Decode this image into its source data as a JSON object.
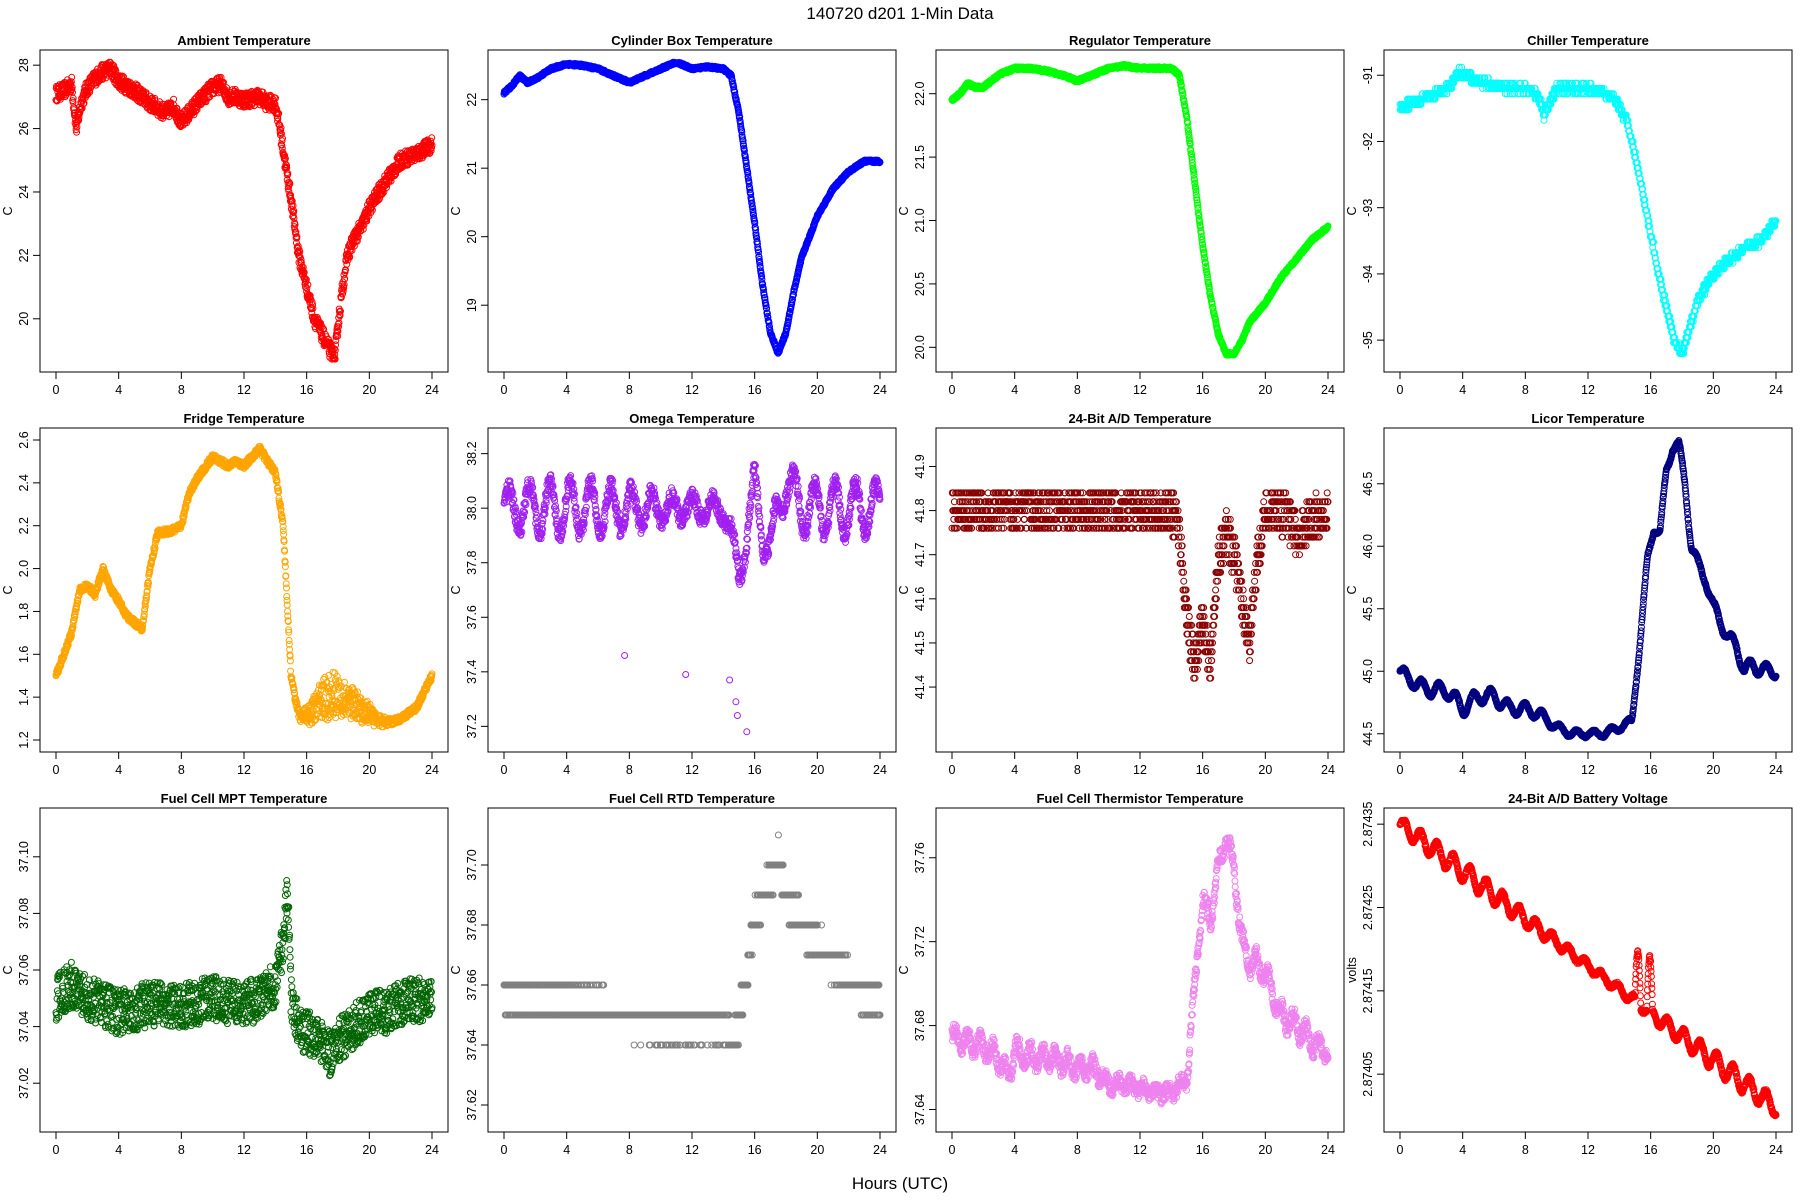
{
  "header": {
    "title": "140720    d201    1-Min Data"
  },
  "xlabel": "Hours (UTC)",
  "chart_data": [
    {
      "type": "scatter",
      "title": "Ambient Temperature",
      "ylabel": "C",
      "color": "#ff0000",
      "xlim": [
        0,
        24
      ],
      "ylim": [
        18.7,
        28.1
      ],
      "xticks": [
        0,
        4,
        8,
        12,
        16,
        20,
        24
      ],
      "yticks": [
        20,
        22,
        24,
        26,
        28
      ],
      "ytick_labels": [
        "20",
        "22",
        "24",
        "26",
        "28"
      ],
      "series": {
        "x": [
          0,
          0.5,
          1,
          1.3,
          1.6,
          2,
          2.5,
          3,
          3.5,
          4,
          5,
          6,
          7,
          7.5,
          8,
          8.5,
          9,
          10,
          10.5,
          11,
          11.5,
          12,
          13,
          13.5,
          14,
          14.3,
          14.6,
          15,
          15.5,
          16,
          16.5,
          17,
          17.5,
          17.8,
          18,
          18.3,
          18.6,
          19,
          19.5,
          20,
          21,
          22,
          23,
          24
        ],
        "y": [
          27.1,
          27.2,
          27.4,
          26.0,
          26.8,
          27.3,
          27.6,
          27.8,
          27.9,
          27.5,
          27.2,
          26.8,
          26.5,
          26.7,
          26.2,
          26.5,
          26.8,
          27.3,
          27.4,
          27.0,
          27.0,
          26.9,
          27.0,
          26.8,
          26.8,
          26.0,
          25.0,
          23.8,
          22.0,
          21.0,
          20.0,
          19.5,
          19.0,
          18.8,
          19.8,
          21.0,
          22.0,
          22.5,
          22.9,
          23.5,
          24.3,
          25.0,
          25.2,
          25.5
        ],
        "noise": 0.25
      }
    },
    {
      "type": "scatter",
      "title": "Cylinder Box Temperature",
      "ylabel": "C",
      "color": "#0000ff",
      "xlim": [
        0,
        24
      ],
      "ylim": [
        18.2,
        22.55
      ],
      "xticks": [
        0,
        4,
        8,
        12,
        16,
        20,
        24
      ],
      "yticks": [
        19,
        20,
        21,
        22
      ],
      "ytick_labels": [
        "19",
        "20",
        "21",
        "22"
      ],
      "series": {
        "x": [
          0,
          0.5,
          1,
          1.5,
          2,
          3,
          4,
          5,
          6,
          7,
          8,
          9,
          10,
          11,
          12,
          13,
          14,
          14.5,
          15,
          15.5,
          16,
          16.5,
          17,
          17.5,
          18,
          18.5,
          19,
          20,
          21,
          22,
          23,
          24
        ],
        "y": [
          22.1,
          22.2,
          22.35,
          22.25,
          22.3,
          22.45,
          22.52,
          22.5,
          22.45,
          22.35,
          22.25,
          22.35,
          22.45,
          22.55,
          22.45,
          22.48,
          22.45,
          22.35,
          21.8,
          21.0,
          20.2,
          19.3,
          18.6,
          18.3,
          18.6,
          19.2,
          19.7,
          20.3,
          20.7,
          20.95,
          21.1,
          21.1
        ],
        "noise": 0.02
      }
    },
    {
      "type": "scatter",
      "title": "Regulator Temperature",
      "ylabel": "C",
      "color": "#00ff00",
      "xlim": [
        0,
        24
      ],
      "ylim": [
        19.9,
        22.25
      ],
      "xticks": [
        0,
        4,
        8,
        12,
        16,
        20,
        24
      ],
      "yticks": [
        20.0,
        20.5,
        21.0,
        21.5,
        22.0
      ],
      "ytick_labels": [
        "20.0",
        "20.5",
        "21.0",
        "21.5",
        "22.0"
      ],
      "series": {
        "x": [
          0,
          0.5,
          1,
          1.5,
          2,
          3,
          4,
          5,
          6,
          7,
          8,
          9,
          10,
          11,
          12,
          13,
          14,
          14.5,
          15,
          15.5,
          16,
          16.5,
          17,
          17.5,
          18,
          18.5,
          19,
          20,
          21,
          22,
          23,
          24
        ],
        "y": [
          21.95,
          22.0,
          22.08,
          22.05,
          22.05,
          22.15,
          22.2,
          22.2,
          22.18,
          22.15,
          22.1,
          22.15,
          22.2,
          22.22,
          22.2,
          22.2,
          22.2,
          22.15,
          21.8,
          21.3,
          20.8,
          20.4,
          20.1,
          19.95,
          19.95,
          20.05,
          20.2,
          20.35,
          20.55,
          20.7,
          20.85,
          20.95
        ],
        "noise": 0.012
      }
    },
    {
      "type": "scatter",
      "title": "Chiller Temperature",
      "ylabel": "C",
      "color": "#00ffff",
      "xlim": [
        0,
        24
      ],
      "ylim": [
        -95.3,
        -90.8
      ],
      "xticks": [
        0,
        4,
        8,
        12,
        16,
        20,
        24
      ],
      "yticks": [
        -95,
        -94,
        -93,
        -92,
        -91
      ],
      "ytick_labels": [
        "-95",
        "-94",
        "-93",
        "-92",
        "-91"
      ],
      "series": {
        "x": [
          0,
          1,
          2,
          3,
          3.8,
          5,
          6,
          7,
          8,
          8.8,
          9.2,
          9.6,
          10,
          11,
          12,
          13,
          13.8,
          14.5,
          15,
          15.5,
          16,
          16.5,
          17,
          17.5,
          18,
          18.5,
          19,
          20,
          21,
          22,
          23,
          24
        ],
        "y": [
          -91.5,
          -91.4,
          -91.3,
          -91.2,
          -90.95,
          -91.1,
          -91.15,
          -91.2,
          -91.2,
          -91.3,
          -91.6,
          -91.4,
          -91.2,
          -91.2,
          -91.2,
          -91.25,
          -91.4,
          -91.7,
          -92.2,
          -92.8,
          -93.4,
          -94.0,
          -94.5,
          -95.0,
          -95.2,
          -94.8,
          -94.4,
          -94.0,
          -93.8,
          -93.6,
          -93.5,
          -93.2
        ],
        "noise": 0.06,
        "quant": 0.08
      }
    },
    {
      "type": "scatter",
      "title": "Fridge Temperature",
      "ylabel": "C",
      "color": "#ffa500",
      "xlim": [
        0,
        24
      ],
      "ylim": [
        1.2,
        2.6
      ],
      "xticks": [
        0,
        4,
        8,
        12,
        16,
        20,
        24
      ],
      "yticks": [
        1.2,
        1.4,
        1.6,
        1.8,
        2.0,
        2.2,
        2.4,
        2.6
      ],
      "ytick_labels": [
        "1.2",
        "1.4",
        "1.6",
        "1.8",
        "2.0",
        "2.2",
        "2.4",
        "2.6"
      ],
      "series": {
        "x": [
          0,
          0.5,
          1,
          1.5,
          2,
          2.5,
          3,
          3.5,
          4,
          4.5,
          5,
          5.5,
          6,
          6.5,
          7,
          7.5,
          8,
          8.5,
          9,
          9.5,
          10,
          10.5,
          11,
          11.5,
          12,
          12.5,
          13,
          13.5,
          14,
          14.5,
          15,
          15.5,
          16,
          17,
          18,
          19,
          20,
          21,
          22,
          23,
          24
        ],
        "y": [
          1.5,
          1.6,
          1.7,
          1.9,
          1.92,
          1.88,
          2.0,
          1.9,
          1.85,
          1.78,
          1.75,
          1.72,
          2.0,
          2.17,
          2.17,
          2.18,
          2.2,
          2.35,
          2.42,
          2.47,
          2.52,
          2.5,
          2.48,
          2.5,
          2.48,
          2.52,
          2.56,
          2.5,
          2.45,
          2.2,
          1.5,
          1.3,
          1.28,
          1.3,
          1.32,
          1.3,
          1.28,
          1.27,
          1.3,
          1.35,
          1.5
        ],
        "noise": 0.015,
        "band": [
          15.2,
          21.5,
          0.22,
          17.5
        ]
      }
    },
    {
      "type": "scatter",
      "title": "Omega Temperature",
      "ylabel": "C",
      "color": "#a020f0",
      "xlim": [
        0,
        24
      ],
      "ylim": [
        37.15,
        38.25
      ],
      "xticks": [
        0,
        4,
        8,
        12,
        16,
        20,
        24
      ],
      "yticks": [
        37.2,
        37.4,
        37.6,
        37.8,
        38.0,
        38.2
      ],
      "ytick_labels": [
        "37.2",
        "37.4",
        "37.6",
        "37.8",
        "38.0",
        "38.2"
      ],
      "series": {
        "x": [
          0,
          1,
          2,
          3,
          4,
          5,
          6,
          7,
          8,
          9,
          10,
          11,
          12,
          13,
          14,
          14.5,
          15,
          15.5,
          16,
          16.5,
          17,
          17.5,
          18,
          19,
          20,
          21,
          22,
          23,
          24
        ],
        "y": [
          38.0,
          38.0,
          38.0,
          38.0,
          38.0,
          38.0,
          38.0,
          38.0,
          38.0,
          38.0,
          38.0,
          38.0,
          38.0,
          38.0,
          38.0,
          37.9,
          37.75,
          37.9,
          38.1,
          37.9,
          37.85,
          38.0,
          38.1,
          38.0,
          38.0,
          38.0,
          38.0,
          38.0,
          38.0
        ],
        "noise": 0.03,
        "wave": [
          0.1,
          1.3
        ]
      },
      "outliers": [
        {
          "x": 7.7,
          "y": 37.46
        },
        {
          "x": 11.6,
          "y": 37.39
        },
        {
          "x": 14.4,
          "y": 37.37
        },
        {
          "x": 14.8,
          "y": 37.29
        },
        {
          "x": 14.9,
          "y": 37.24
        },
        {
          "x": 15.5,
          "y": 37.18
        }
      ]
    },
    {
      "type": "scatter",
      "title": "24-Bit A/D Temperature",
      "ylabel": "C",
      "color": "#8b0000",
      "xlim": [
        0,
        24
      ],
      "ylim": [
        41.28,
        41.96
      ],
      "xticks": [
        0,
        4,
        8,
        12,
        16,
        20,
        24
      ],
      "yticks": [
        41.4,
        41.5,
        41.6,
        41.7,
        41.8,
        41.9
      ],
      "ytick_labels": [
        "41.4",
        "41.5",
        "41.6",
        "41.7",
        "41.8",
        "41.9"
      ],
      "series": {
        "x": [
          0,
          2,
          4,
          6,
          8,
          10,
          12,
          14,
          14.5,
          15,
          15.5,
          16,
          16.5,
          17,
          17.5,
          18,
          18.5,
          19,
          19.5,
          20,
          21,
          22,
          23,
          24
        ],
        "y": [
          41.8,
          41.8,
          41.8,
          41.8,
          41.8,
          41.8,
          41.8,
          41.8,
          41.75,
          41.55,
          41.45,
          41.55,
          41.45,
          41.7,
          41.75,
          41.7,
          41.6,
          41.5,
          41.7,
          41.8,
          41.8,
          41.75,
          41.78,
          41.8
        ],
        "noise": 0.05,
        "quant": 0.02
      }
    },
    {
      "type": "scatter",
      "title": "Licor Temperature",
      "ylabel": "C",
      "color": "#000080",
      "xlim": [
        0,
        24
      ],
      "ylim": [
        44.45,
        46.85
      ],
      "xticks": [
        0,
        4,
        8,
        12,
        16,
        20,
        24
      ],
      "yticks": [
        44.5,
        45.0,
        45.5,
        46.0,
        46.5
      ],
      "ytick_labels": [
        "44.5",
        "45.0",
        "45.5",
        "46.0",
        "46.5"
      ],
      "series": {
        "x": [
          0,
          1,
          2,
          3,
          4,
          5,
          6,
          7,
          8,
          9,
          10,
          11,
          12,
          13,
          14,
          14.8,
          15.3,
          15.8,
          16.2,
          16.6,
          17,
          17.4,
          17.8,
          18.2,
          18.6,
          19,
          19.5,
          20,
          20.5,
          21,
          21.5,
          22,
          22.5,
          23,
          23.5,
          24
        ],
        "y": [
          45.0,
          44.9,
          44.85,
          44.85,
          44.7,
          44.8,
          44.8,
          44.7,
          44.7,
          44.65,
          44.55,
          44.5,
          44.5,
          44.5,
          44.55,
          44.6,
          45.2,
          45.9,
          46.15,
          46.1,
          46.6,
          46.8,
          46.8,
          46.5,
          46.0,
          45.85,
          45.75,
          45.5,
          45.4,
          45.25,
          45.2,
          45.0,
          45.05,
          45.02,
          45.0,
          45.0
        ],
        "noise": 0.008,
        "wave": [
          0.06,
          1.1
        ]
      }
    },
    {
      "type": "scatter",
      "title": "Fuel Cell MPT Temperature",
      "ylabel": "C",
      "color": "#006400",
      "xlim": [
        0,
        24
      ],
      "ylim": [
        37.007,
        37.113
      ],
      "xticks": [
        0,
        4,
        8,
        12,
        16,
        20,
        24
      ],
      "yticks": [
        37.02,
        37.04,
        37.06,
        37.08,
        37.1
      ],
      "ytick_labels": [
        "37.02",
        "37.04",
        "37.06",
        "37.08",
        "37.10"
      ],
      "series": {
        "x": [
          0,
          1,
          2,
          4,
          6,
          8,
          10,
          12,
          13,
          14,
          14.5,
          14.8,
          15,
          15.5,
          16,
          17,
          17.5,
          18,
          19,
          20,
          21,
          22,
          23,
          24
        ],
        "y": [
          37.05,
          37.055,
          37.05,
          37.045,
          37.048,
          37.047,
          37.05,
          37.048,
          37.05,
          37.055,
          37.07,
          37.09,
          37.05,
          37.04,
          37.038,
          37.035,
          37.03,
          37.035,
          37.04,
          37.045,
          37.045,
          37.048,
          37.05,
          37.048
        ],
        "noise": 0.008
      }
    },
    {
      "type": "scatter",
      "title": "Fuel Cell RTD Temperature",
      "ylabel": "C",
      "color": "#808080",
      "xlim": [
        0,
        24
      ],
      "ylim": [
        37.615,
        37.715
      ],
      "xticks": [
        0,
        4,
        8,
        12,
        16,
        20,
        24
      ],
      "yticks": [
        37.62,
        37.64,
        37.66,
        37.68,
        37.7
      ],
      "ytick_labels": [
        "37.62",
        "37.64",
        "37.66",
        "37.68",
        "37.70"
      ],
      "series": {
        "x": [
          0,
          3,
          6,
          7,
          9,
          11,
          13,
          14,
          14.6,
          15,
          15.5,
          16,
          16.5,
          17,
          17.5,
          18,
          19,
          20,
          21,
          22,
          23,
          24
        ],
        "y": [
          37.656,
          37.655,
          37.653,
          37.65,
          37.648,
          37.647,
          37.648,
          37.648,
          37.638,
          37.648,
          37.665,
          37.682,
          37.688,
          37.695,
          37.702,
          37.69,
          37.68,
          37.673,
          37.668,
          37.662,
          37.658,
          37.655
        ],
        "noise": 0.004,
        "quant": 0.01
      }
    },
    {
      "type": "scatter",
      "title": "Fuel Cell Thermistor Temperature",
      "ylabel": "C",
      "color": "#ee82ee",
      "xlim": [
        0,
        24
      ],
      "ylim": [
        37.635,
        37.778
      ],
      "xticks": [
        0,
        4,
        8,
        12,
        16,
        20,
        24
      ],
      "yticks": [
        37.64,
        37.68,
        37.72,
        37.76
      ],
      "ytick_labels": [
        "37.64",
        "37.68",
        "37.72",
        "37.76"
      ],
      "series": {
        "x": [
          0,
          1,
          2,
          3,
          3.5,
          4,
          5,
          6,
          7,
          8,
          9,
          10,
          11,
          12,
          13,
          14,
          15,
          15.5,
          16,
          16.5,
          17,
          17.5,
          18,
          18.5,
          19,
          19.5,
          20,
          20.5,
          21,
          22,
          23,
          24
        ],
        "y": [
          37.675,
          37.672,
          37.67,
          37.665,
          37.655,
          37.668,
          37.665,
          37.665,
          37.663,
          37.66,
          37.66,
          37.652,
          37.652,
          37.65,
          37.648,
          37.648,
          37.655,
          37.7,
          37.74,
          37.73,
          37.755,
          37.77,
          37.755,
          37.72,
          37.71,
          37.71,
          37.705,
          37.695,
          37.685,
          37.68,
          37.672,
          37.668
        ],
        "noise": 0.0035,
        "wave": [
          0.005,
          0.8
        ]
      }
    },
    {
      "type": "scatter",
      "title": "24-Bit A/D Battery Voltage",
      "ylabel": "volts",
      "color": "#ff0000",
      "xlim": [
        0,
        24
      ],
      "ylim": [
        2.873995,
        2.874355
      ],
      "xticks": [
        0,
        4,
        8,
        12,
        16,
        20,
        24
      ],
      "yticks": [
        2.87405,
        2.87415,
        2.87425,
        2.87435
      ],
      "ytick_labels": [
        "2.87405",
        "2.87415",
        "2.87425",
        "2.87435"
      ],
      "series": {
        "x": [
          0,
          24
        ],
        "y": [
          2.87435,
          2.87401
        ],
        "noise": 2e-06,
        "wave": [
          1.2e-05,
          1.05
        ],
        "spikes": [
          [
            15.0,
            16.5,
            6e-05
          ]
        ]
      }
    }
  ]
}
